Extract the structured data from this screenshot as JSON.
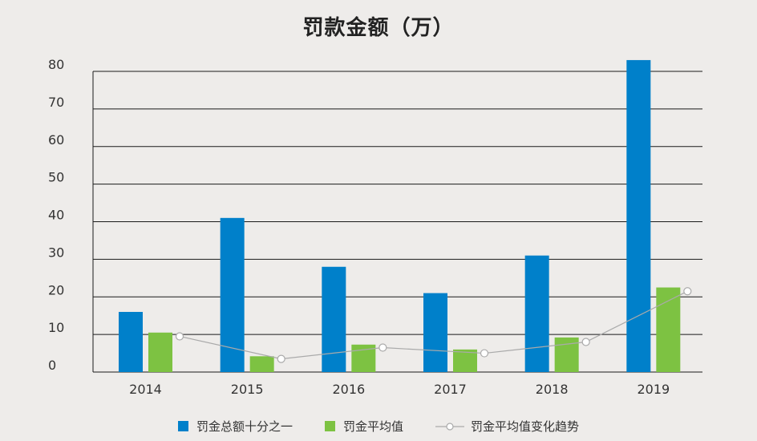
{
  "chart_data": {
    "type": "bar",
    "title": "罚款金额（万）",
    "xlabel": "",
    "ylabel": "",
    "categories": [
      "2014",
      "2015",
      "2016",
      "2017",
      "2018",
      "2019"
    ],
    "ylim": [
      0,
      80
    ],
    "yticks": [
      0,
      10,
      20,
      30,
      40,
      50,
      60,
      70,
      80
    ],
    "grid": true,
    "legend_position": "bottom",
    "series": [
      {
        "name": "罚金总额十分之一",
        "type": "bar",
        "color": "#0080CA",
        "values": [
          16,
          41,
          28,
          21,
          31,
          83
        ]
      },
      {
        "name": "罚金平均值",
        "type": "bar",
        "color": "#7DC242",
        "values": [
          10.5,
          4.2,
          7.3,
          6,
          9.2,
          22.5
        ]
      },
      {
        "name": "罚金平均值变化趋势",
        "type": "line",
        "color": "#AAAAAA",
        "values": [
          9.5,
          3.5,
          6.5,
          5,
          8,
          21.5
        ]
      }
    ]
  }
}
